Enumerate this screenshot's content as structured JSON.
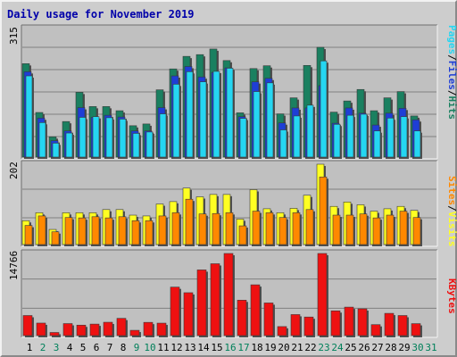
{
  "title": "Daily usage for November 2019",
  "colors": {
    "hits": "#1a8060",
    "files": "#1e3ed6",
    "pages": "#25d6f2",
    "visits": "#ffff22",
    "sites": "#ff8800",
    "kbytes": "#ee1111",
    "weekend_label": "#00805a",
    "weekday_label": "#000000",
    "panel": "#c0c0c0",
    "grid": "#808080"
  },
  "chart_data": [
    {
      "type": "bar",
      "panel": "Pages / Files / Hits",
      "max_label": "315",
      "ylim": [
        0,
        315
      ],
      "legend": [
        "Pages",
        "/",
        "Files",
        "/",
        "Hits"
      ],
      "categories": [
        "1",
        "2",
        "3",
        "4",
        "5",
        "6",
        "7",
        "8",
        "9",
        "10",
        "11",
        "12",
        "13",
        "14",
        "15",
        "16",
        "17",
        "18",
        "19",
        "20",
        "21",
        "22",
        "23",
        "24",
        "25",
        "26",
        "27",
        "28",
        "29",
        "30",
        "31"
      ],
      "series": [
        {
          "name": "Hits",
          "values": [
            268,
            128,
            58,
            102,
            186,
            145,
            145,
            133,
            90,
            95,
            193,
            253,
            289,
            294,
            310,
            277,
            127,
            254,
            262,
            124,
            170,
            263,
            315,
            129,
            161,
            194,
            133,
            170,
            188,
            118,
            0
          ]
        },
        {
          "name": "Files",
          "values": [
            245,
            112,
            47,
            75,
            142,
            114,
            120,
            115,
            75,
            75,
            142,
            233,
            260,
            230,
            243,
            256,
            116,
            216,
            226,
            98,
            141,
            141,
            205,
            97,
            141,
            126,
            92,
            126,
            140,
            107,
            0
          ]
        },
        {
          "name": "Pages",
          "values": [
            233,
            99,
            40,
            69,
            114,
            116,
            113,
            109,
            68,
            72,
            124,
            209,
            245,
            216,
            246,
            255,
            111,
            188,
            213,
            78,
            118,
            149,
            276,
            94,
            120,
            123,
            75,
            112,
            116,
            75,
            0
          ]
        }
      ]
    },
    {
      "type": "bar",
      "panel": "Visits / Sites",
      "max_label": "202",
      "ylim": [
        0,
        202
      ],
      "legend": [
        "Sites",
        "/",
        "Visits"
      ],
      "categories": [
        "1",
        "2",
        "3",
        "4",
        "5",
        "6",
        "7",
        "8",
        "9",
        "10",
        "11",
        "12",
        "13",
        "14",
        "15",
        "16",
        "17",
        "18",
        "19",
        "20",
        "21",
        "22",
        "23",
        "24",
        "25",
        "26",
        "27",
        "28",
        "29",
        "30",
        "31"
      ],
      "series": [
        {
          "name": "Visits",
          "values": [
            60,
            80,
            38,
            80,
            80,
            80,
            88,
            88,
            74,
            72,
            102,
            108,
            142,
            120,
            126,
            126,
            64,
            138,
            90,
            80,
            91,
            124,
            202,
            96,
            107,
            100,
            84,
            90,
            96,
            86,
            0
          ]
        },
        {
          "name": "Sites",
          "values": [
            48,
            72,
            32,
            68,
            67,
            70,
            67,
            70,
            60,
            60,
            72,
            80,
            114,
            77,
            78,
            80,
            47,
            84,
            80,
            68,
            80,
            88,
            170,
            74,
            74,
            77,
            67,
            74,
            84,
            68,
            0
          ]
        }
      ]
    },
    {
      "type": "bar",
      "panel": "KBytes",
      "max_label": "14766",
      "ylim": [
        0,
        14766
      ],
      "legend": [
        "KBytes"
      ],
      "categories": [
        "1",
        "2",
        "3",
        "4",
        "5",
        "6",
        "7",
        "8",
        "9",
        "10",
        "11",
        "12",
        "13",
        "14",
        "15",
        "16",
        "17",
        "18",
        "19",
        "20",
        "21",
        "22",
        "23",
        "24",
        "25",
        "26",
        "27",
        "28",
        "29",
        "30",
        "31"
      ],
      "series": [
        {
          "name": "KBytes",
          "values": [
            3610,
            2250,
            560,
            2160,
            1880,
            2070,
            2400,
            3100,
            950,
            2380,
            2240,
            8720,
            7710,
            11810,
            12920,
            14766,
            6370,
            9130,
            5870,
            1620,
            3780,
            3340,
            14766,
            4450,
            5120,
            4810,
            1970,
            4000,
            3610,
            2150,
            0
          ]
        }
      ]
    }
  ],
  "weekend_days": [
    2,
    3,
    9,
    10,
    16,
    17,
    23,
    24,
    30,
    31
  ]
}
